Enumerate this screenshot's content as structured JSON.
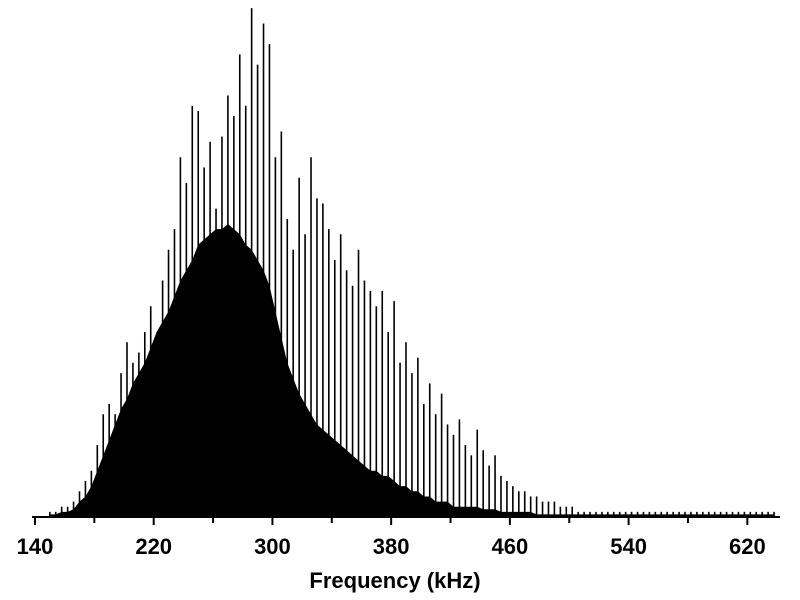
{
  "chart_data": {
    "type": "spectrum",
    "x_label": "Frequency (kHz)",
    "xlim": [
      138,
      642
    ],
    "ylim": [
      0,
      100
    ],
    "xticks": [
      140,
      220,
      300,
      380,
      460,
      540,
      620
    ],
    "xminorticks": [
      180,
      260,
      340,
      420,
      500,
      580
    ],
    "x": [
      150,
      154,
      158,
      162,
      166,
      170,
      174,
      178,
      182,
      186,
      190,
      194,
      198,
      202,
      206,
      210,
      214,
      218,
      222,
      226,
      230,
      234,
      238,
      242,
      246,
      250,
      254,
      258,
      262,
      266,
      270,
      274,
      278,
      282,
      286,
      290,
      294,
      298,
      302,
      306,
      310,
      314,
      318,
      322,
      326,
      330,
      334,
      338,
      342,
      346,
      350,
      354,
      358,
      362,
      366,
      370,
      374,
      378,
      382,
      386,
      390,
      394,
      398,
      402,
      406,
      410,
      414,
      418,
      422,
      426,
      430,
      434,
      438,
      442,
      446,
      450,
      454,
      458,
      462,
      466,
      470,
      474,
      478,
      482,
      486,
      490,
      494,
      498,
      502,
      506,
      510,
      514,
      518,
      522,
      526,
      530,
      534,
      538,
      542,
      546,
      550,
      554,
      558,
      562,
      566,
      570,
      574,
      578,
      582,
      586,
      590,
      594,
      598,
      602,
      606,
      610,
      614,
      618,
      622,
      626,
      630,
      634,
      638
    ],
    "series": [
      {
        "mark": "stem",
        "color": "#000000",
        "values": [
          1,
          1,
          2,
          2,
          3,
          5,
          7,
          9,
          14,
          20,
          22,
          20,
          28,
          34,
          30,
          32,
          36,
          41,
          35,
          46,
          52,
          56,
          70,
          65,
          80,
          79,
          68,
          73,
          60,
          74,
          82,
          78,
          90,
          80,
          99,
          88,
          96,
          92,
          70,
          75,
          58,
          52,
          66,
          55,
          70,
          62,
          61,
          56,
          50,
          55,
          48,
          45,
          52,
          46,
          44,
          41,
          44,
          36,
          42,
          30,
          34,
          28,
          31,
          22,
          26,
          20,
          24,
          18,
          16,
          19,
          14,
          12,
          17,
          13,
          10,
          12,
          8,
          7,
          6,
          5,
          5,
          4,
          4,
          3,
          3,
          3,
          2,
          2,
          2,
          1,
          1,
          1,
          1,
          1,
          1,
          1,
          1,
          1,
          1,
          1,
          1,
          1,
          1,
          1,
          1,
          1,
          1,
          1,
          1,
          1,
          1,
          1,
          1,
          1,
          1,
          1,
          1,
          1,
          1,
          1,
          1,
          1,
          1
        ]
      },
      {
        "mark": "area",
        "color": "#000000",
        "values": [
          0.5,
          0.5,
          1,
          1,
          1.5,
          3,
          4,
          6,
          9,
          12,
          15,
          18,
          21,
          23,
          26,
          28,
          30,
          33,
          36,
          38,
          40,
          43,
          46,
          48,
          50,
          53,
          54,
          55,
          56,
          56,
          57,
          56,
          55,
          53,
          52,
          50,
          48,
          45,
          40,
          35,
          30,
          27,
          24,
          22,
          20,
          18,
          17,
          16,
          15,
          14,
          13,
          12,
          11,
          10,
          9,
          9,
          8,
          8,
          7,
          6,
          6,
          5,
          5,
          4,
          4,
          3,
          3,
          3,
          2,
          2,
          2,
          2,
          2,
          1.5,
          1.5,
          1.5,
          1,
          1,
          1,
          1,
          1,
          1,
          0.5,
          0.5,
          0.5,
          0.5,
          0.5,
          0.5,
          0.5,
          0.5,
          0.5,
          0.5,
          0.5,
          0.5,
          0.5,
          0.5,
          0.5,
          0.5,
          0.5,
          0.5,
          0.5,
          0.5,
          0.5,
          0.5,
          0.5,
          0.5,
          0.5,
          0.5,
          0.5,
          0.5,
          0.5,
          0.5,
          0.5,
          0.5,
          0.5,
          0.5,
          0.5,
          0.5,
          0.5,
          0.5,
          0.5,
          0.5,
          0.5
        ]
      }
    ]
  }
}
